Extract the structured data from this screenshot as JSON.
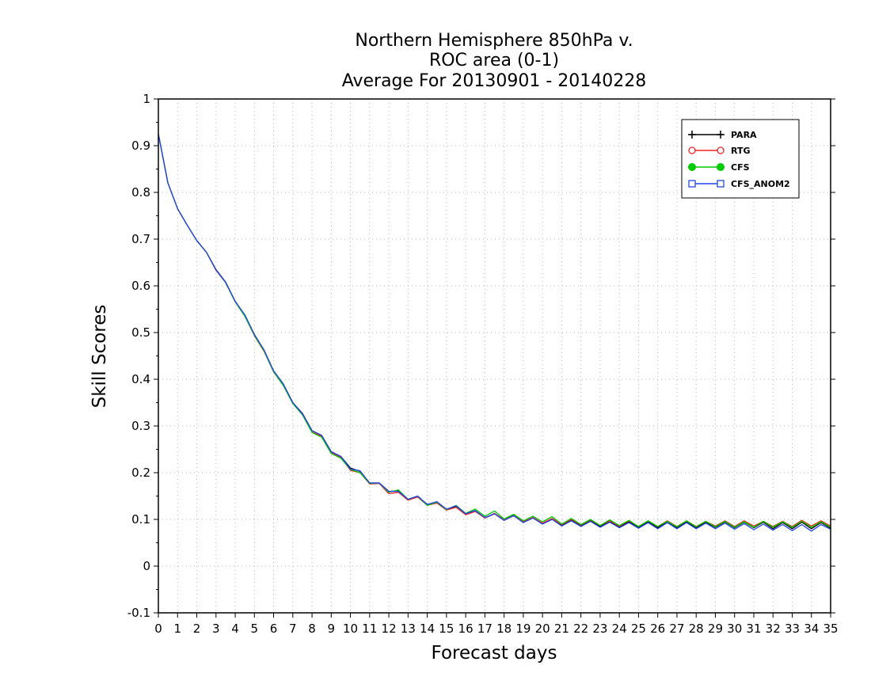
{
  "chart_data": {
    "type": "line",
    "title": [
      "Northern Hemisphere 850hPa v.",
      "ROC area (0-1)",
      "Average For 20130901 - 20140228"
    ],
    "xlabel": "Forecast days",
    "ylabel": "Skill Scores",
    "xlim": [
      0,
      35
    ],
    "ylim": [
      -0.1,
      1
    ],
    "x_ticks": [
      0,
      1,
      2,
      3,
      4,
      5,
      6,
      7,
      8,
      9,
      10,
      11,
      12,
      13,
      14,
      15,
      16,
      17,
      18,
      19,
      20,
      21,
      22,
      23,
      24,
      25,
      26,
      27,
      28,
      29,
      30,
      31,
      32,
      33,
      34,
      35
    ],
    "y_ticks": [
      -0.1,
      0,
      0.1,
      0.2,
      0.3,
      0.4,
      0.5,
      0.6,
      0.7,
      0.8,
      0.9,
      1
    ],
    "y_tick_labels": [
      "-0.1",
      "0",
      "0.1",
      "0.2",
      "0.3",
      "0.4",
      "0.5",
      "0.6",
      "0.7",
      "0.8",
      "0.9",
      "1"
    ],
    "grid": true,
    "legend_position": "top-right",
    "x": [
      0,
      0.5,
      1,
      1.5,
      2,
      2.5,
      3,
      3.5,
      4,
      4.5,
      5,
      5.5,
      6,
      6.5,
      7,
      7.5,
      8,
      8.5,
      9,
      9.5,
      10,
      10.5,
      11,
      11.5,
      12,
      12.5,
      13,
      13.5,
      14,
      14.5,
      15,
      15.5,
      16,
      16.5,
      17,
      17.5,
      18,
      18.5,
      19,
      19.5,
      20,
      20.5,
      21,
      21.5,
      22,
      22.5,
      23,
      23.5,
      24,
      24.5,
      25,
      25.5,
      26,
      26.5,
      27,
      27.5,
      28,
      28.5,
      29,
      29.5,
      30,
      30.5,
      31,
      31.5,
      32,
      32.5,
      33,
      33.5,
      34,
      34.5,
      35
    ],
    "series": [
      {
        "name": "PARA",
        "color": "#000000",
        "marker": "plus",
        "values": [
          0.925,
          0.82,
          0.765,
          0.73,
          0.697,
          0.672,
          0.635,
          0.608,
          0.567,
          0.537,
          0.495,
          0.462,
          0.418,
          0.39,
          0.35,
          0.327,
          0.29,
          0.28,
          0.245,
          0.235,
          0.21,
          0.203,
          0.178,
          0.178,
          0.16,
          0.161,
          0.143,
          0.149,
          0.132,
          0.137,
          0.121,
          0.128,
          0.111,
          0.118,
          0.103,
          0.112,
          0.098,
          0.108,
          0.094,
          0.103,
          0.091,
          0.101,
          0.087,
          0.098,
          0.086,
          0.097,
          0.085,
          0.095,
          0.083,
          0.095,
          0.082,
          0.095,
          0.082,
          0.095,
          0.082,
          0.095,
          0.082,
          0.094,
          0.083,
          0.095,
          0.082,
          0.094,
          0.082,
          0.094,
          0.08,
          0.093,
          0.08,
          0.094,
          0.08,
          0.093,
          0.081
        ]
      },
      {
        "name": "RTG",
        "color": "#ee2222",
        "marker": "circle",
        "values": [
          0.925,
          0.82,
          0.765,
          0.73,
          0.697,
          0.672,
          0.633,
          0.607,
          0.566,
          0.536,
          0.493,
          0.46,
          0.416,
          0.388,
          0.348,
          0.325,
          0.287,
          0.278,
          0.243,
          0.233,
          0.205,
          0.2,
          0.176,
          0.177,
          0.155,
          0.158,
          0.141,
          0.148,
          0.13,
          0.135,
          0.12,
          0.126,
          0.11,
          0.117,
          0.103,
          0.113,
          0.099,
          0.109,
          0.095,
          0.104,
          0.092,
          0.102,
          0.089,
          0.1,
          0.088,
          0.099,
          0.087,
          0.097,
          0.086,
          0.097,
          0.085,
          0.097,
          0.085,
          0.097,
          0.085,
          0.097,
          0.085,
          0.096,
          0.086,
          0.097,
          0.085,
          0.097,
          0.086,
          0.096,
          0.085,
          0.096,
          0.085,
          0.098,
          0.086,
          0.097,
          0.086
        ]
      },
      {
        "name": "CFS",
        "color": "#00cc00",
        "marker": "filled-circle",
        "values": [
          0.925,
          0.82,
          0.765,
          0.73,
          0.697,
          0.672,
          0.634,
          0.607,
          0.566,
          0.535,
          0.494,
          0.461,
          0.416,
          0.387,
          0.348,
          0.324,
          0.286,
          0.276,
          0.241,
          0.231,
          0.207,
          0.2,
          0.177,
          0.178,
          0.158,
          0.163,
          0.143,
          0.15,
          0.13,
          0.137,
          0.121,
          0.13,
          0.113,
          0.122,
          0.107,
          0.118,
          0.101,
          0.111,
          0.097,
          0.107,
          0.095,
          0.106,
          0.09,
          0.102,
          0.089,
          0.1,
          0.087,
          0.099,
          0.087,
          0.098,
          0.085,
          0.097,
          0.085,
          0.096,
          0.084,
          0.097,
          0.084,
          0.096,
          0.084,
          0.096,
          0.083,
          0.095,
          0.083,
          0.096,
          0.083,
          0.095,
          0.083,
          0.096,
          0.083,
          0.095,
          0.083
        ]
      },
      {
        "name": "CFS_ANOM2",
        "color": "#2244ee",
        "marker": "square",
        "values": [
          0.925,
          0.82,
          0.765,
          0.73,
          0.697,
          0.672,
          0.634,
          0.608,
          0.567,
          0.538,
          0.496,
          0.463,
          0.418,
          0.39,
          0.35,
          0.326,
          0.29,
          0.28,
          0.245,
          0.235,
          0.208,
          0.204,
          0.178,
          0.178,
          0.16,
          0.16,
          0.143,
          0.15,
          0.132,
          0.138,
          0.122,
          0.129,
          0.112,
          0.119,
          0.104,
          0.112,
          0.098,
          0.108,
          0.093,
          0.103,
          0.09,
          0.1,
          0.086,
          0.097,
          0.085,
          0.096,
          0.083,
          0.094,
          0.082,
          0.093,
          0.081,
          0.093,
          0.08,
          0.093,
          0.08,
          0.093,
          0.08,
          0.092,
          0.08,
          0.092,
          0.079,
          0.091,
          0.078,
          0.09,
          0.077,
          0.089,
          0.076,
          0.089,
          0.075,
          0.089,
          0.079
        ]
      }
    ]
  }
}
